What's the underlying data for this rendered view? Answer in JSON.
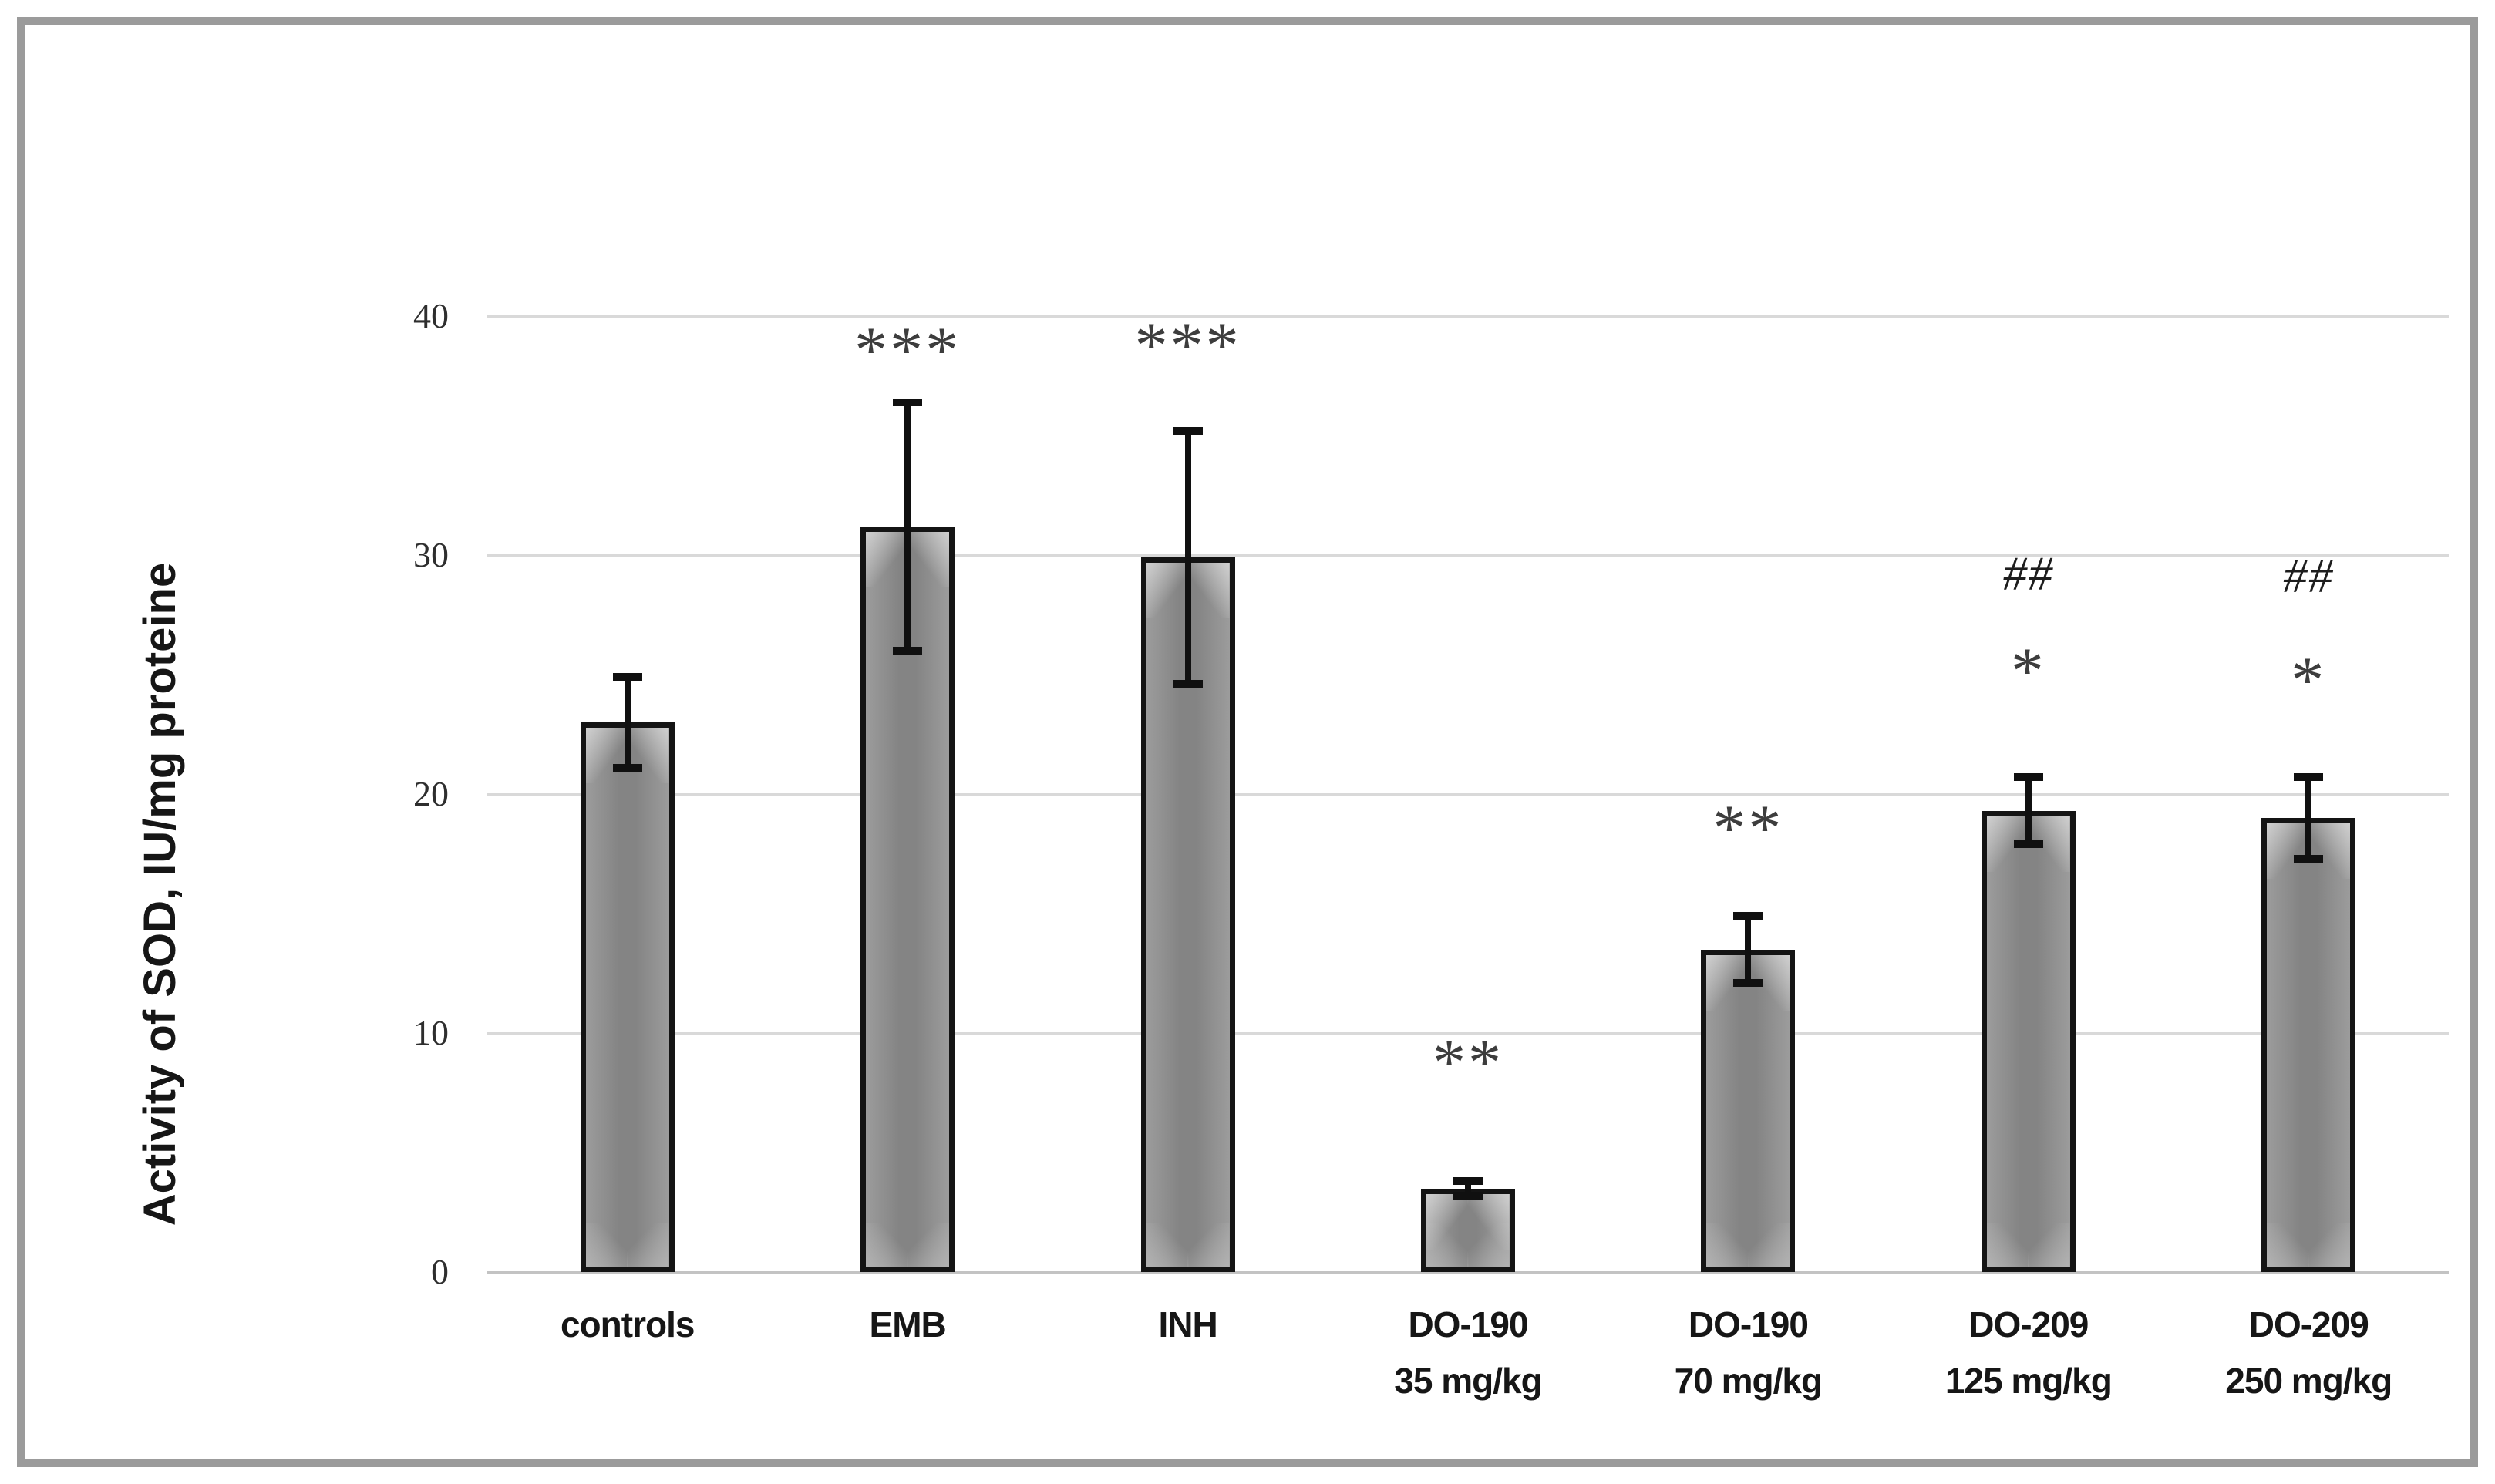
{
  "figure": {
    "frame_color": "#9b9b9b",
    "background": "#ffffff"
  },
  "chart_data": {
    "type": "bar",
    "title": "",
    "xlabel": "",
    "ylabel": "Activity of SOD, IU/mg proteine",
    "ylim": [
      0,
      40
    ],
    "yticks": [
      0,
      10,
      20,
      30,
      40
    ],
    "grid": true,
    "legend": false,
    "bar_fill_color": "#8c8c8c",
    "bar_border_color": "#141414",
    "gridline_color": "#d9d9d9",
    "error_bar_color": "#101010",
    "categories": [
      {
        "line1": "controls",
        "line2": ""
      },
      {
        "line1": "EMB",
        "line2": ""
      },
      {
        "line1": "INH",
        "line2": ""
      },
      {
        "line1": "DO-190",
        "line2": "35 mg/kg"
      },
      {
        "line1": "DO-190",
        "line2": "70 mg/kg"
      },
      {
        "line1": "DO-209",
        "line2": "125 mg/kg"
      },
      {
        "line1": "DO-209",
        "line2": "250 mg/kg"
      }
    ],
    "values": [
      23.0,
      31.2,
      29.9,
      3.5,
      13.5,
      19.3,
      19.0
    ],
    "errors": [
      1.9,
      5.2,
      5.3,
      0.3,
      1.4,
      1.4,
      1.7
    ],
    "annotations": [
      {
        "category_index": 1,
        "text": "***",
        "value": 38.8,
        "style": "stars"
      },
      {
        "category_index": 2,
        "text": "***",
        "value": 39.0,
        "style": "stars"
      },
      {
        "category_index": 3,
        "text": "**",
        "value": 9.0,
        "style": "stars"
      },
      {
        "category_index": 4,
        "text": "**",
        "value": 18.8,
        "style": "stars"
      },
      {
        "category_index": 5,
        "text": "##",
        "value": 29.2,
        "style": "hash"
      },
      {
        "category_index": 5,
        "text": "*",
        "value": 25.4,
        "style": "stars"
      },
      {
        "category_index": 6,
        "text": "##",
        "value": 29.1,
        "style": "hash"
      },
      {
        "category_index": 6,
        "text": "*",
        "value": 25.0,
        "style": "stars"
      }
    ]
  }
}
